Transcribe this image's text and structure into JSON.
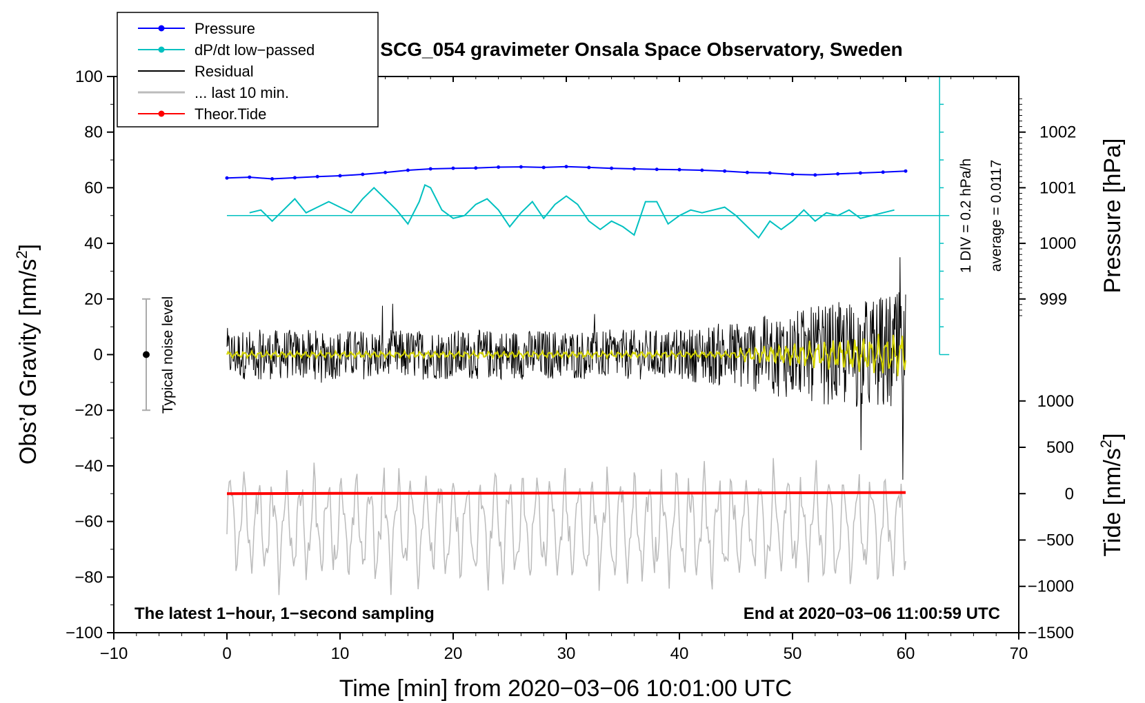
{
  "chart_data": {
    "type": "line",
    "title": "SCG_054 gravimeter Onsala Space Observatory, Sweden",
    "xlabel": "Time [min] from 2020−03−06 10:01:00 UTC",
    "ylabel": "Obs’d Gravity [nm/s",
    "ylabel_sup": "2",
    "ylabel_close": "]",
    "y2label": "Pressure [hPa]",
    "y3label": "Tide [nm/s",
    "y3label_sup": "2",
    "y3label_close": "]",
    "xlim": [
      -10,
      70
    ],
    "ylim": [
      -100,
      100
    ],
    "xticks": [
      "−10",
      "0",
      "10",
      "20",
      "30",
      "40",
      "50",
      "60",
      "70"
    ],
    "xtick_values": [
      -10,
      0,
      10,
      20,
      30,
      40,
      50,
      60,
      70
    ],
    "yticks": [
      "100",
      "80",
      "60",
      "40",
      "20",
      "0",
      "−20",
      "−40",
      "−60",
      "−80",
      "−100"
    ],
    "ytick_values": [
      100,
      80,
      60,
      40,
      20,
      0,
      -20,
      -40,
      -60,
      -80,
      -100
    ],
    "pressure_ticks": [
      "1002",
      "1001",
      "1000",
      "999"
    ],
    "pressure_tick_values": [
      1002,
      1001,
      1000,
      999
    ],
    "pressure_scale": {
      "ref_hpa": 1000,
      "ref_y": 40,
      "units_per_hpa": 20
    },
    "tide_ticks": [
      "1000",
      "500",
      "0",
      "−500",
      "−1000",
      "−1500"
    ],
    "tide_tick_values": [
      1000,
      500,
      0,
      -500,
      -1000,
      -1500
    ],
    "tide_scale": {
      "ref_nms2": 0,
      "ref_y": -50,
      "units_per_nms2": 0.03333
    },
    "legend": [
      {
        "label": "Pressure",
        "color": "#0000ff",
        "marker": true
      },
      {
        "label": "dP/dt low−passed",
        "color": "#00c0c0",
        "marker": true
      },
      {
        "label": "Residual",
        "color": "#000000",
        "marker": false
      },
      {
        "label": "... last 10 min.",
        "color": "#bbbbbb",
        "marker": false
      },
      {
        "label": "Theor.Tide",
        "color": "#ff0000",
        "marker": true
      }
    ],
    "annotations": {
      "left_note": "The latest 1−hour, 1−second sampling",
      "right_note": "End at 2020−03−06 11:00:59 UTC",
      "noise_label": "Typical noise level",
      "noise_range": [
        -20,
        20
      ],
      "scale_label_1": "1 DIV = 0.2 hPa/h",
      "scale_label_2": "average = 0.0117",
      "dpdt_baseline": 50,
      "scale_bar_x": 63,
      "scale_bar_range": [
        0,
        100
      ]
    },
    "series": [
      {
        "name": "Pressure",
        "color": "#0000ff",
        "x": [
          0,
          2,
          4,
          6,
          8,
          10,
          12,
          14,
          16,
          18,
          20,
          22,
          24,
          26,
          28,
          30,
          32,
          34,
          36,
          38,
          40,
          42,
          44,
          46,
          48,
          50,
          52,
          54,
          56,
          58,
          60
        ],
        "y": [
          63.5,
          63.8,
          63.2,
          63.6,
          64.0,
          64.3,
          64.8,
          65.5,
          66.3,
          66.8,
          67.0,
          67.1,
          67.4,
          67.5,
          67.3,
          67.6,
          67.3,
          67.0,
          66.8,
          66.6,
          66.5,
          66.3,
          66.0,
          65.5,
          65.3,
          64.8,
          64.6,
          65.0,
          65.3,
          65.6,
          66.0
        ]
      },
      {
        "name": "dP/dt low-passed",
        "color": "#00c0c0",
        "x": [
          2,
          3,
          4,
          5,
          6,
          7,
          8,
          9,
          10,
          11,
          12,
          13,
          14,
          15,
          16,
          17,
          17.5,
          18,
          19,
          20,
          21,
          22,
          23,
          24,
          25,
          26,
          27,
          28,
          29,
          30,
          31,
          32,
          33,
          34,
          35,
          36,
          37,
          38,
          39,
          40,
          41,
          42,
          43,
          44,
          45,
          46,
          47,
          48,
          49,
          50,
          51,
          52,
          53,
          54,
          55,
          56,
          57,
          58,
          59
        ],
        "y": [
          51,
          52,
          48,
          52,
          56,
          51,
          53,
          55,
          53,
          51,
          56,
          60,
          56,
          52,
          47,
          55,
          61,
          60,
          52,
          49,
          50,
          54,
          56,
          52,
          46,
          51,
          55,
          49,
          54,
          57,
          54,
          48,
          45,
          48,
          46,
          43,
          55,
          55,
          47,
          50,
          52,
          51,
          52,
          53,
          50,
          46,
          42,
          48,
          45,
          48,
          52,
          48,
          51,
          50,
          52,
          49,
          50,
          51,
          52
        ]
      },
      {
        "name": "Theor.Tide",
        "color": "#ff0000",
        "x": [
          0,
          10,
          20,
          30,
          40,
          50,
          60
        ],
        "y": [
          -50.0,
          -49.9,
          -49.9,
          -49.8,
          -49.8,
          -49.7,
          -49.6
        ]
      }
    ]
  }
}
